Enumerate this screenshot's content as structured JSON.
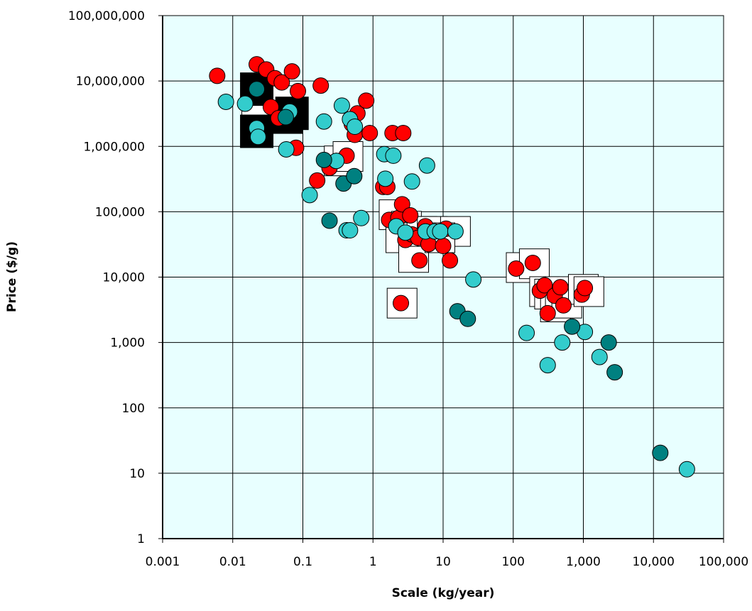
{
  "chart_data": {
    "type": "scatter",
    "title": "",
    "xlabel": "Scale (kg/year)",
    "ylabel": "Price ($/g)",
    "x_scale": "log",
    "y_scale": "log",
    "xlim": [
      0.001,
      100000
    ],
    "ylim": [
      1,
      100000000
    ],
    "x_ticks": [
      "0.001",
      "0.01",
      "0.1",
      "1",
      "10",
      "100",
      "1,000",
      "10,000",
      "100,000"
    ],
    "y_ticks": [
      "1",
      "10",
      "100",
      "1,000",
      "10,000",
      "100,000",
      "1,000,000",
      "10,000,000",
      "100,000,000"
    ],
    "grid": true,
    "legend": "none",
    "colors": {
      "plot_background": "#e8ffff",
      "red": "#ff0000",
      "cyan": "#33cccc",
      "teal": "#008080",
      "grid": "#000000"
    },
    "boxes_white": [
      [
        0.045,
        5000000
      ],
      [
        0.022,
        3600000
      ],
      [
        0.33,
        600000
      ],
      [
        0.44,
        700000
      ],
      [
        2.0,
        90000
      ],
      [
        3.0,
        60000
      ],
      [
        2.5,
        40000
      ],
      [
        3.8,
        20000
      ],
      [
        2.6,
        4000
      ],
      [
        5.0,
        50000
      ],
      [
        7.0,
        50000
      ],
      [
        15.0,
        50000
      ],
      [
        9.0,
        40000
      ],
      [
        130,
        14000
      ],
      [
        200,
        16000
      ],
      [
        280,
        6000
      ],
      [
        330,
        5500
      ],
      [
        400,
        3500
      ],
      [
        470,
        6000
      ],
      [
        580,
        4000
      ],
      [
        1000,
        6500
      ],
      [
        1200,
        6000
      ]
    ],
    "boxes_black": [
      [
        0.022,
        7500000
      ],
      [
        0.022,
        1700000
      ],
      [
        0.058,
        2800000
      ],
      [
        0.07,
        3200000
      ]
    ],
    "series": [
      {
        "color": "red",
        "points": [
          [
            0.006,
            12000000
          ],
          [
            0.022,
            18000000
          ],
          [
            0.03,
            15000000
          ],
          [
            0.04,
            11000000
          ],
          [
            0.05,
            9500000
          ],
          [
            0.07,
            14000000
          ],
          [
            0.085,
            7000000
          ],
          [
            0.035,
            4000000
          ],
          [
            0.045,
            2700000
          ],
          [
            0.08,
            950000
          ],
          [
            0.18,
            8500000
          ],
          [
            0.6,
            3200000
          ],
          [
            0.8,
            5000000
          ],
          [
            0.5,
            2200000
          ],
          [
            0.55,
            1500000
          ],
          [
            0.9,
            1600000
          ],
          [
            1.9,
            1600000
          ],
          [
            2.7,
            1600000
          ],
          [
            0.16,
            300000
          ],
          [
            0.24,
            470000
          ],
          [
            0.3,
            600000
          ],
          [
            0.42,
            720000
          ],
          [
            1.4,
            240000
          ],
          [
            1.6,
            240000
          ],
          [
            1.7,
            75000
          ],
          [
            2.3,
            80000
          ],
          [
            2.6,
            130000
          ],
          [
            3.4,
            88000
          ],
          [
            2.9,
            37000
          ],
          [
            3.6,
            45000
          ],
          [
            4.4,
            40000
          ],
          [
            5.6,
            60000
          ],
          [
            6.2,
            32000
          ],
          [
            11.0,
            55000
          ],
          [
            10.0,
            30000
          ],
          [
            12.5,
            18000
          ],
          [
            4.6,
            18000
          ],
          [
            2.5,
            4000
          ],
          [
            110,
            13500
          ],
          [
            190,
            16500
          ],
          [
            240,
            6200
          ],
          [
            280,
            7500
          ],
          [
            310,
            2800
          ],
          [
            390,
            5200
          ],
          [
            470,
            7000
          ],
          [
            520,
            3700
          ],
          [
            950,
            5400
          ],
          [
            1050,
            6800
          ]
        ]
      },
      {
        "color": "cyan",
        "points": [
          [
            0.008,
            4800000
          ],
          [
            0.015,
            4500000
          ],
          [
            0.022,
            1900000
          ],
          [
            0.023,
            1400000
          ],
          [
            0.065,
            3400000
          ],
          [
            0.058,
            900000
          ],
          [
            0.2,
            2400000
          ],
          [
            0.36,
            4200000
          ],
          [
            0.47,
            2600000
          ],
          [
            0.55,
            2000000
          ],
          [
            0.125,
            180000
          ],
          [
            0.3,
            600000
          ],
          [
            0.42,
            52000
          ],
          [
            0.47,
            52000
          ],
          [
            0.68,
            80000
          ],
          [
            1.45,
            760000
          ],
          [
            1.95,
            720000
          ],
          [
            1.5,
            320000
          ],
          [
            3.6,
            290000
          ],
          [
            5.9,
            510000
          ],
          [
            2.15,
            60000
          ],
          [
            2.9,
            48000
          ],
          [
            5.6,
            50000
          ],
          [
            7.6,
            50000
          ],
          [
            9.1,
            50000
          ],
          [
            15.0,
            50000
          ],
          [
            27.0,
            9200
          ],
          [
            155,
            1400
          ],
          [
            310,
            450
          ],
          [
            500,
            1000
          ],
          [
            1050,
            1450
          ],
          [
            1700,
            600
          ],
          [
            30000,
            11.5
          ]
        ]
      },
      {
        "color": "teal",
        "points": [
          [
            0.022,
            7500000
          ],
          [
            0.057,
            2800000
          ],
          [
            0.2,
            620000
          ],
          [
            0.24,
            73000
          ],
          [
            0.38,
            270000
          ],
          [
            0.54,
            350000
          ],
          [
            16.0,
            3000
          ],
          [
            22.5,
            2300
          ],
          [
            690,
            1750
          ],
          [
            2300,
            1000
          ],
          [
            2800,
            350
          ],
          [
            12500,
            20.5
          ]
        ]
      }
    ]
  }
}
